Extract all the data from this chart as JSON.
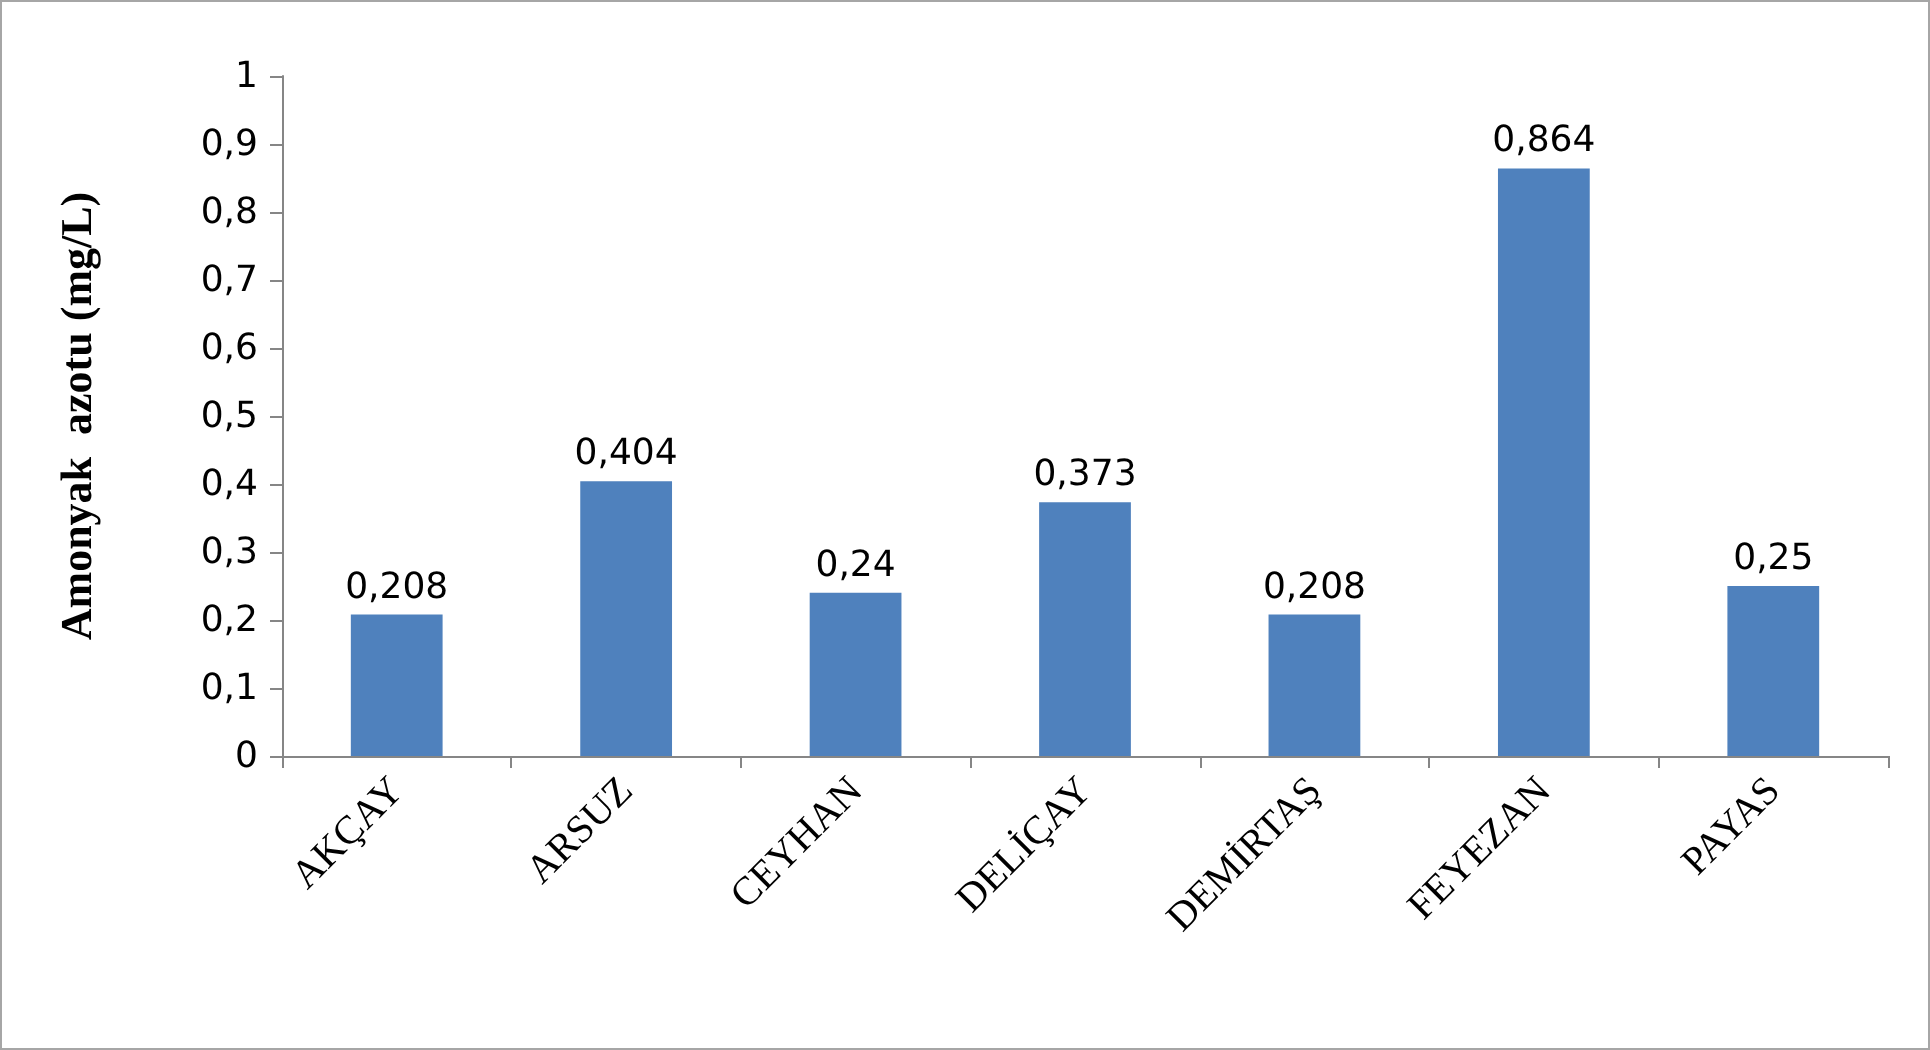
{
  "chart_data": {
    "type": "bar",
    "ylabel": "Amonyak  azotu (mg/L)",
    "categories": [
      "AKÇAY",
      "ARSUZ",
      "CEYHAN",
      "DELİÇAY",
      "DEMİRTAŞ",
      "FEYEZAN",
      "PAYAS"
    ],
    "values": [
      0.208,
      0.404,
      0.24,
      0.373,
      0.208,
      0.864,
      0.25
    ],
    "value_labels": [
      "0,208",
      "0,404",
      "0,24",
      "0,373",
      "0,208",
      "0,864",
      "0,25"
    ],
    "color": "#4f81bd",
    "ylim": [
      0,
      1
    ],
    "yticks": [
      {
        "value": 0,
        "label": "0"
      },
      {
        "value": 0.1,
        "label": "0,1"
      },
      {
        "value": 0.2,
        "label": "0,2"
      },
      {
        "value": 0.3,
        "label": "0,3"
      },
      {
        "value": 0.4,
        "label": "0,4"
      },
      {
        "value": 0.5,
        "label": "0,5"
      },
      {
        "value": 0.6,
        "label": "0,6"
      },
      {
        "value": 0.7,
        "label": "0,7"
      },
      {
        "value": 0.8,
        "label": "0,8"
      },
      {
        "value": 0.9,
        "label": "0,9"
      },
      {
        "value": 1,
        "label": "1"
      }
    ],
    "grid": false
  }
}
